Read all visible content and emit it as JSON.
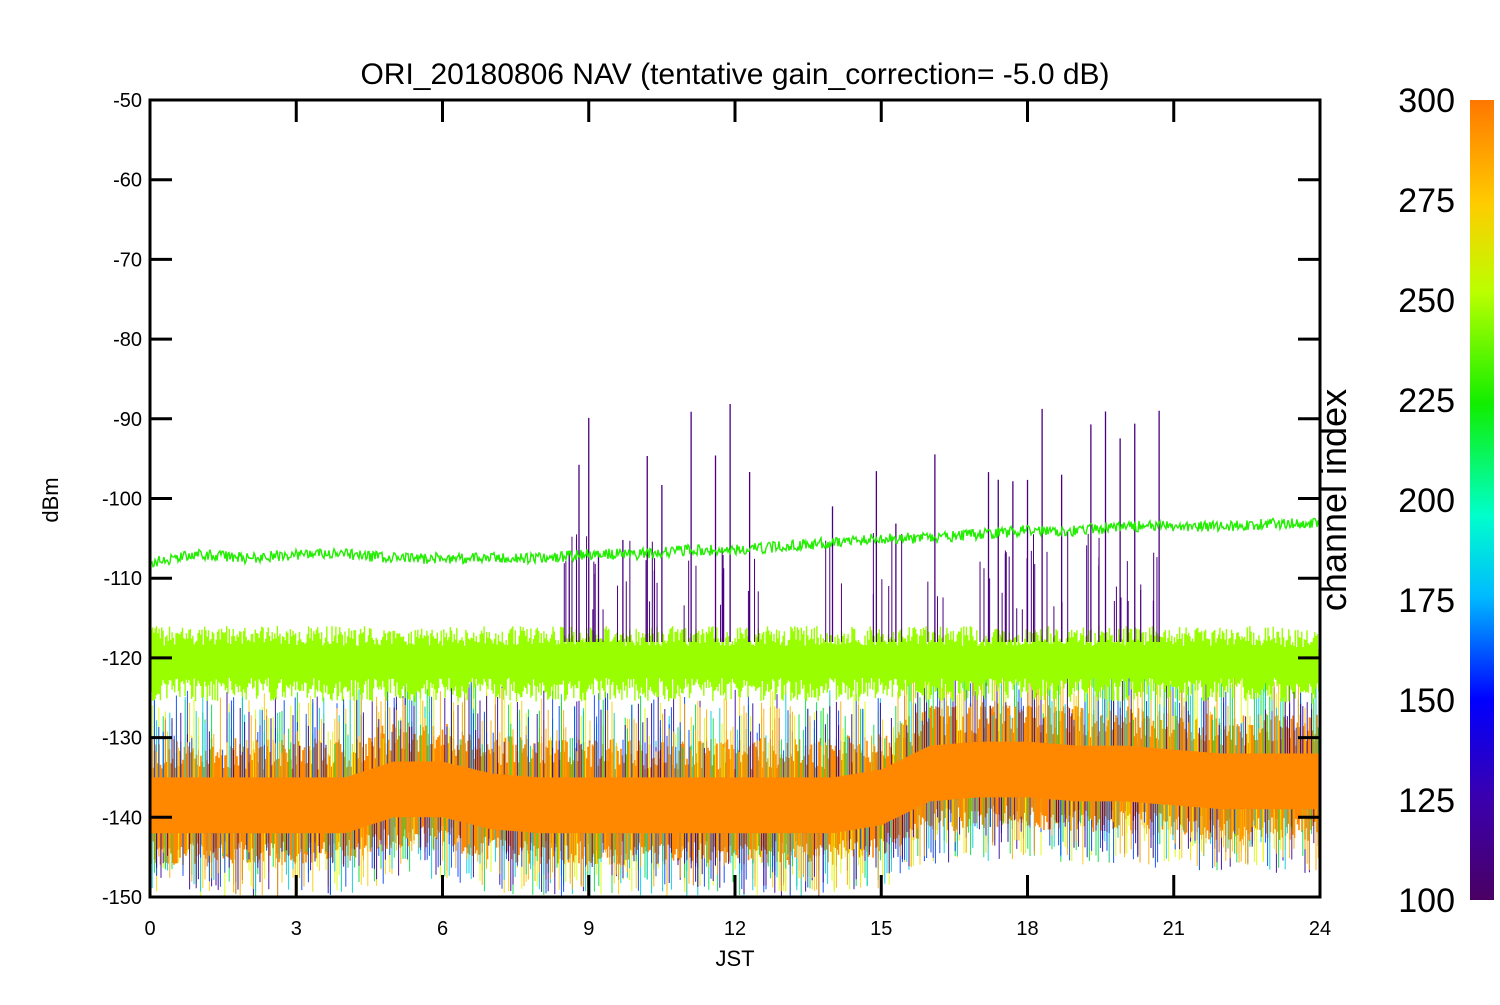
{
  "chart_data": {
    "type": "line",
    "title": "ORI_20180806 NAV (tentative gain_correction= -5.0 dB)",
    "xlabel": "JST",
    "ylabel": "dBm",
    "xlim": [
      0,
      24
    ],
    "ylim": [
      -150,
      -50
    ],
    "xticks": [
      "0",
      "3",
      "6",
      "9",
      "12",
      "15",
      "18",
      "21",
      "24"
    ],
    "yticks": [
      "-50",
      "-60",
      "-70",
      "-80",
      "-90",
      "-100",
      "-110",
      "-120",
      "-130",
      "-140",
      "-150"
    ],
    "grid": false,
    "colorbar": {
      "label": "channel index",
      "range": [
        100,
        300
      ],
      "ticks": [
        "300",
        "275",
        "250",
        "225",
        "200",
        "175",
        "150",
        "125",
        "100"
      ],
      "colormap": "rainbow"
    },
    "series": [
      {
        "color": "#22ee00",
        "x": [
          0,
          1,
          2,
          3,
          4,
          5,
          6,
          7,
          8,
          9,
          10,
          11,
          12,
          13,
          14,
          15,
          16,
          17,
          18,
          19,
          20,
          21,
          22,
          23,
          24
        ],
        "values": [
          -108,
          -107,
          -107.5,
          -107,
          -107,
          -107.5,
          -107.5,
          -107.5,
          -107.5,
          -107,
          -107,
          -106.5,
          -106.5,
          -106,
          -105.5,
          -105,
          -105,
          -104.5,
          -104,
          -104,
          -103.5,
          -103.5,
          -103.5,
          -103.2,
          -103
        ]
      },
      {
        "color": "#99ff00",
        "x": [
          0,
          1,
          2,
          3,
          4,
          5,
          6,
          7,
          8,
          9,
          10,
          11,
          12,
          13,
          14,
          15,
          16,
          17,
          18,
          19,
          20,
          21,
          22,
          23,
          24
        ],
        "values": [
          -120.5,
          -120.5,
          -120.5,
          -120.5,
          -120.5,
          -120.5,
          -120.5,
          -120.5,
          -120.5,
          -120.5,
          -120.5,
          -120.5,
          -120.5,
          -120.5,
          -120.5,
          -120.5,
          -120.5,
          -120.5,
          -120.5,
          -120.5,
          -120.5,
          -120.5,
          -120.5,
          -120.5,
          -121
        ]
      },
      {
        "color": "#ff8800",
        "x": [
          0,
          1,
          2,
          3,
          4,
          5,
          6,
          7,
          8,
          9,
          10,
          11,
          12,
          13,
          14,
          15,
          16,
          17,
          18,
          19,
          20,
          21,
          22,
          23,
          24
        ],
        "values": [
          -138,
          -138,
          -138,
          -138,
          -138,
          -136,
          -136,
          -137.5,
          -138,
          -138,
          -138,
          -138,
          -138,
          -138,
          -138,
          -137,
          -134,
          -133.5,
          -133.5,
          -134,
          -134,
          -134.5,
          -135,
          -135,
          -135
        ]
      },
      {
        "color": "#4a0080",
        "type": "spikes",
        "x": [
          8.6,
          8.8,
          9.0,
          9.2,
          9.7,
          10.2,
          10.5,
          11.1,
          11.6,
          11.9,
          12.3,
          14.0,
          14.9,
          15.3,
          16.1,
          17.2,
          17.4,
          17.7,
          18.0,
          18.3,
          18.7,
          19.3,
          19.6,
          19.9,
          20.2,
          20.7
        ]
      }
    ]
  }
}
